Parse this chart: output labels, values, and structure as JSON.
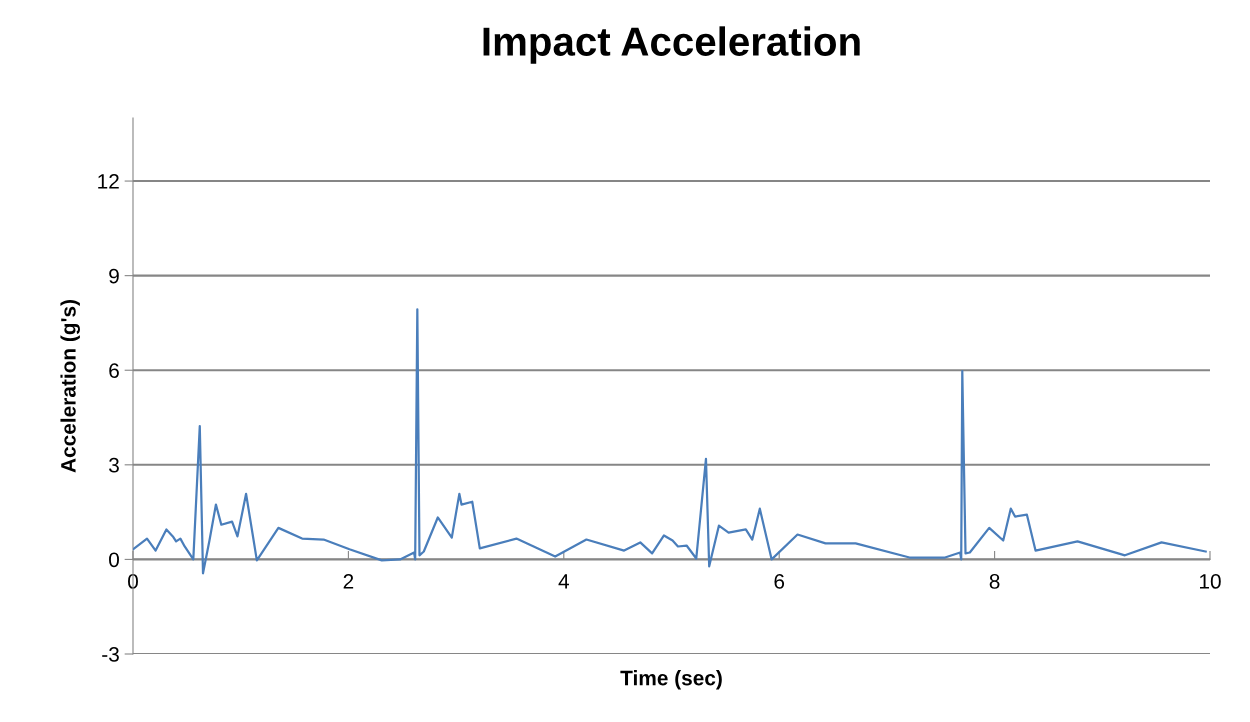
{
  "chart_data": {
    "type": "line",
    "title": "Impact Acceleration",
    "xlabel": "Time (sec)",
    "ylabel": "Acceleration (g's)",
    "xlim": [
      0,
      10
    ],
    "xticks": [
      0,
      2,
      4,
      6,
      8,
      10
    ],
    "ylim": [
      -3,
      14
    ],
    "yticks": [
      -3,
      0,
      3,
      6,
      9,
      12
    ],
    "grid": "y",
    "marker": "none",
    "line_style": "solid",
    "series": [
      {
        "color": "#4a7ebb",
        "x": [
          0,
          0.13,
          0.21,
          0.31,
          0.37,
          0.4,
          0.44,
          0.48,
          0.56,
          0.62,
          0.65,
          0.71,
          0.77,
          0.82,
          0.92,
          0.97,
          1.05,
          1.15,
          1.35,
          1.57,
          1.77,
          2.01,
          2.31,
          2.48,
          2.61,
          2.62,
          2.64,
          2.66,
          2.7,
          2.83,
          2.96,
          3.03,
          3.05,
          3.15,
          3.22,
          3.56,
          3.92,
          4.21,
          4.56,
          4.71,
          4.82,
          4.93,
          5.01,
          5.06,
          5.14,
          5.23,
          5.32,
          5.35,
          5.44,
          5.53,
          5.69,
          5.75,
          5.82,
          5.93,
          6.17,
          6.43,
          6.71,
          7.21,
          7.54,
          7.68,
          7.69,
          7.7,
          7.73,
          7.77,
          7.95,
          8.08,
          8.15,
          8.19,
          8.3,
          8.38,
          8.77,
          9.21,
          9.55,
          9.96
        ],
        "values": [
          0.32,
          0.66,
          0.28,
          0.95,
          0.73,
          0.57,
          0.66,
          0.41,
          0,
          4.23,
          -0.44,
          0.6,
          1.74,
          1.1,
          1.2,
          0.73,
          2.08,
          -0.03,
          1.0,
          0.66,
          0.63,
          0.32,
          -0.03,
          0,
          0.22,
          0,
          7.93,
          0.13,
          0.25,
          1.33,
          0.69,
          2.08,
          1.74,
          1.83,
          0.35,
          0.66,
          0.09,
          0.63,
          0.28,
          0.54,
          0.19,
          0.76,
          0.6,
          0.41,
          0.44,
          0.03,
          3.19,
          -0.22,
          1.07,
          0.85,
          0.95,
          0.63,
          1.61,
          0,
          0.79,
          0.51,
          0.51,
          0.06,
          0.06,
          0.22,
          0,
          5.97,
          0.19,
          0.22,
          1.0,
          0.6,
          1.61,
          1.36,
          1.42,
          0.28,
          0.57,
          0.13,
          0.54,
          0.25
        ]
      }
    ]
  }
}
